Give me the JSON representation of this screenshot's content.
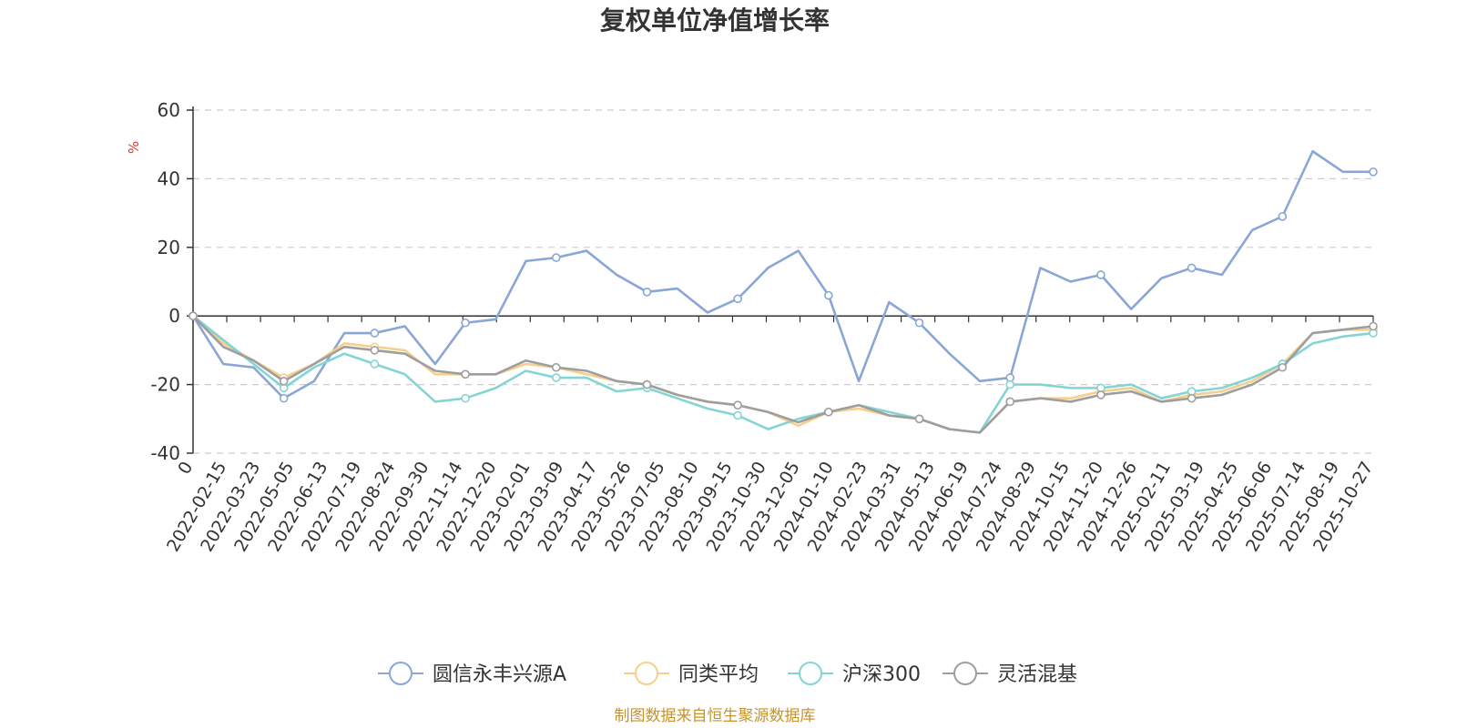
{
  "chart_data": {
    "type": "line",
    "title": "复权单位净值增长率",
    "ylabel": "%",
    "xlabel": "",
    "ylim": [
      -40,
      60
    ],
    "yticks": [
      60,
      40,
      20,
      0,
      -20,
      -40
    ],
    "ytick_labels": [
      "60",
      "40",
      "20",
      "0",
      "-20",
      "-40"
    ],
    "grid": true,
    "legend_position": "bottom-center",
    "x_tick_labels": [
      "0",
      "2022-02-15",
      "2022-03-23",
      "2022-05-05",
      "2022-06-13",
      "2022-07-19",
      "2022-08-24",
      "2022-09-30",
      "2022-11-14",
      "2022-12-20",
      "2023-02-01",
      "2023-03-09",
      "2023-04-17",
      "2023-05-26",
      "2023-07-05",
      "2023-08-10",
      "2023-09-15",
      "2023-10-30",
      "2023-12-05",
      "2024-01-10",
      "2024-02-23",
      "2024-03-31",
      "2024-05-13",
      "2024-06-19",
      "2024-07-24",
      "2024-08-29",
      "2024-10-15",
      "2024-11-20",
      "2024-12-26",
      "2025-02-11",
      "2025-03-19",
      "2025-04-25",
      "2025-06-06",
      "2025-07-14",
      "2025-08-19",
      "2025-10-27"
    ],
    "series": [
      {
        "name": "圆信永丰兴源A",
        "color": "#89a6d6",
        "values": [
          0,
          -14,
          -15,
          -24,
          -19,
          -5,
          -5,
          -3,
          -14,
          -2,
          -1,
          16,
          17,
          19,
          12,
          7,
          8,
          1,
          5,
          14,
          19,
          6,
          -19,
          4,
          -2,
          -11,
          -19,
          -18,
          14,
          10,
          12,
          2,
          11,
          14,
          12,
          25,
          29,
          48,
          42,
          42
        ]
      },
      {
        "name": "同类平均",
        "color": "#f6cf8a",
        "values": [
          0,
          -8,
          -13,
          -18,
          -14,
          -8,
          -9,
          -10,
          -17,
          -17,
          -17,
          -14,
          -15,
          -17,
          -19,
          -20,
          -23,
          -25,
          -26,
          -28,
          -32,
          -28,
          -27,
          -29,
          -30,
          -33,
          -34,
          -25,
          -24,
          -24,
          -22,
          -21,
          -25,
          -23,
          -22,
          -19,
          -14,
          -5,
          -4,
          -4
        ]
      },
      {
        "name": "沪深300",
        "color": "#84d4d4",
        "values": [
          0,
          -7,
          -14,
          -21,
          -15,
          -11,
          -14,
          -17,
          -25,
          -24,
          -21,
          -16,
          -18,
          -18,
          -22,
          -21,
          -24,
          -27,
          -29,
          -33,
          -30,
          -28,
          -26,
          -28,
          -30,
          -33,
          -34,
          -20,
          -20,
          -21,
          -21,
          -20,
          -24,
          -22,
          -21,
          -18,
          -14,
          -8,
          -6,
          -5
        ]
      },
      {
        "name": "灵活混基",
        "color": "#9e9e9e",
        "values": [
          0,
          -9,
          -13,
          -19,
          -14,
          -9,
          -10,
          -11,
          -16,
          -17,
          -17,
          -13,
          -15,
          -16,
          -19,
          -20,
          -23,
          -25,
          -26,
          -28,
          -31,
          -28,
          -26,
          -29,
          -30,
          -33,
          -34,
          -25,
          -24,
          -25,
          -23,
          -22,
          -25,
          -24,
          -23,
          -20,
          -15,
          -5,
          -4,
          -3
        ]
      }
    ]
  },
  "footer": {
    "source": "制图数据来自恒生聚源数据库"
  }
}
